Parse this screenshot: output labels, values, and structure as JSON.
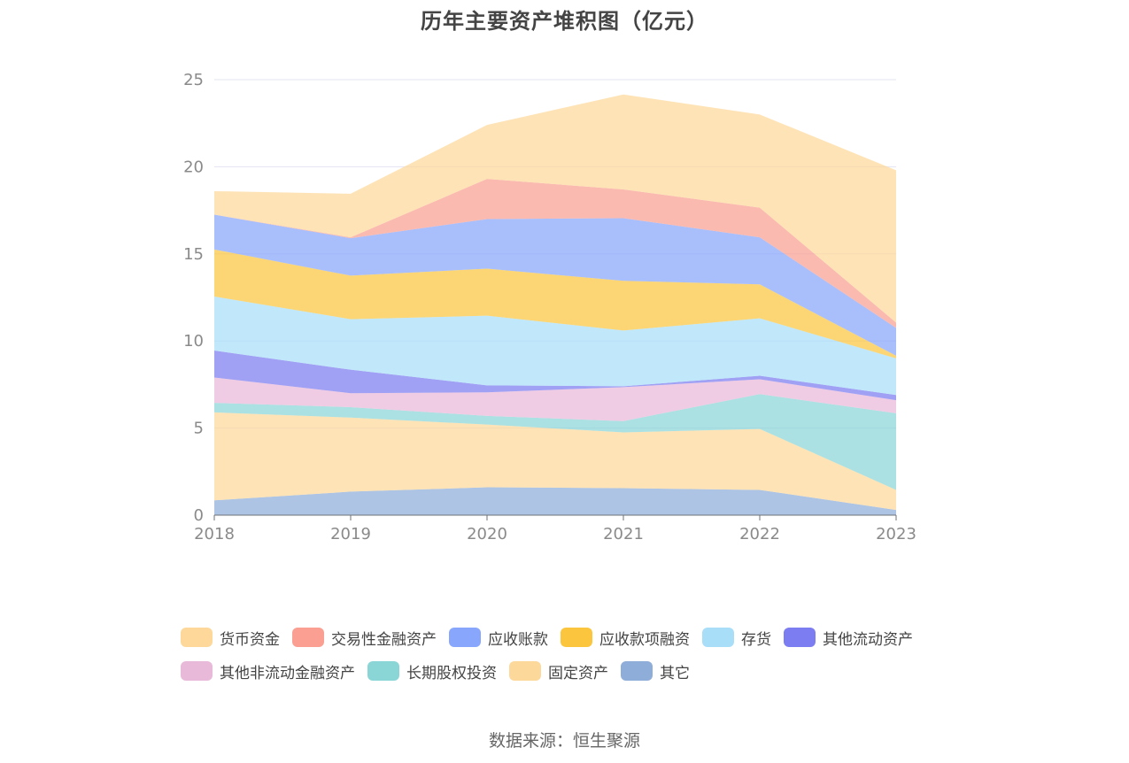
{
  "source": "数据来源：恒生聚源",
  "chart_data": {
    "type": "area",
    "stacked": true,
    "title": "历年主要资产堆积图（亿元）",
    "x": [
      "2018",
      "2019",
      "2020",
      "2021",
      "2022",
      "2023"
    ],
    "ylim": [
      0,
      25
    ],
    "yticks": [
      "0",
      "5",
      "10",
      "15",
      "20",
      "25"
    ],
    "grid": true,
    "legend_position": "bottom",
    "series": [
      {
        "name": "其它",
        "color": "#8eadd9",
        "values": [
          0.85,
          1.35,
          1.6,
          1.55,
          1.45,
          0.3
        ]
      },
      {
        "name": "固定资产",
        "color": "#fcd89a",
        "values": [
          5.05,
          4.25,
          3.6,
          3.2,
          3.5,
          1.15
        ]
      },
      {
        "name": "长期股权投资",
        "color": "#8ad6d7",
        "values": [
          0.55,
          0.6,
          0.5,
          0.65,
          2.0,
          4.4
        ]
      },
      {
        "name": "其他非流动金融资产",
        "color": "#e9b9d9",
        "values": [
          1.45,
          0.8,
          1.35,
          1.95,
          0.85,
          0.75
        ]
      },
      {
        "name": "其他流动资产",
        "color": "#7b7df0",
        "values": [
          1.55,
          1.35,
          0.4,
          0.05,
          0.2,
          0.3
        ]
      },
      {
        "name": "存货",
        "color": "#a8def8",
        "values": [
          3.1,
          2.9,
          4.0,
          3.2,
          3.3,
          2.1
        ]
      },
      {
        "name": "应收款项融资",
        "color": "#fbc63e",
        "values": [
          2.7,
          2.5,
          2.7,
          2.85,
          1.95,
          0.15
        ]
      },
      {
        "name": "应收账款",
        "color": "#88a6fb",
        "values": [
          2.0,
          2.15,
          2.85,
          3.6,
          2.7,
          1.6
        ]
      },
      {
        "name": "交易性金融资产",
        "color": "#fa9f92",
        "values": [
          0.0,
          0.05,
          2.3,
          1.65,
          1.7,
          0.3
        ]
      },
      {
        "name": "货币资金",
        "color": "#fdd89a",
        "values": [
          1.35,
          2.5,
          3.1,
          5.45,
          5.35,
          8.75
        ]
      }
    ],
    "legend_order": [
      "货币资金",
      "交易性金融资产",
      "应收账款",
      "应收款项融资",
      "存货",
      "其他流动资产",
      "其他非流动金融资产",
      "长期股权投资",
      "固定资产",
      "其它"
    ]
  }
}
